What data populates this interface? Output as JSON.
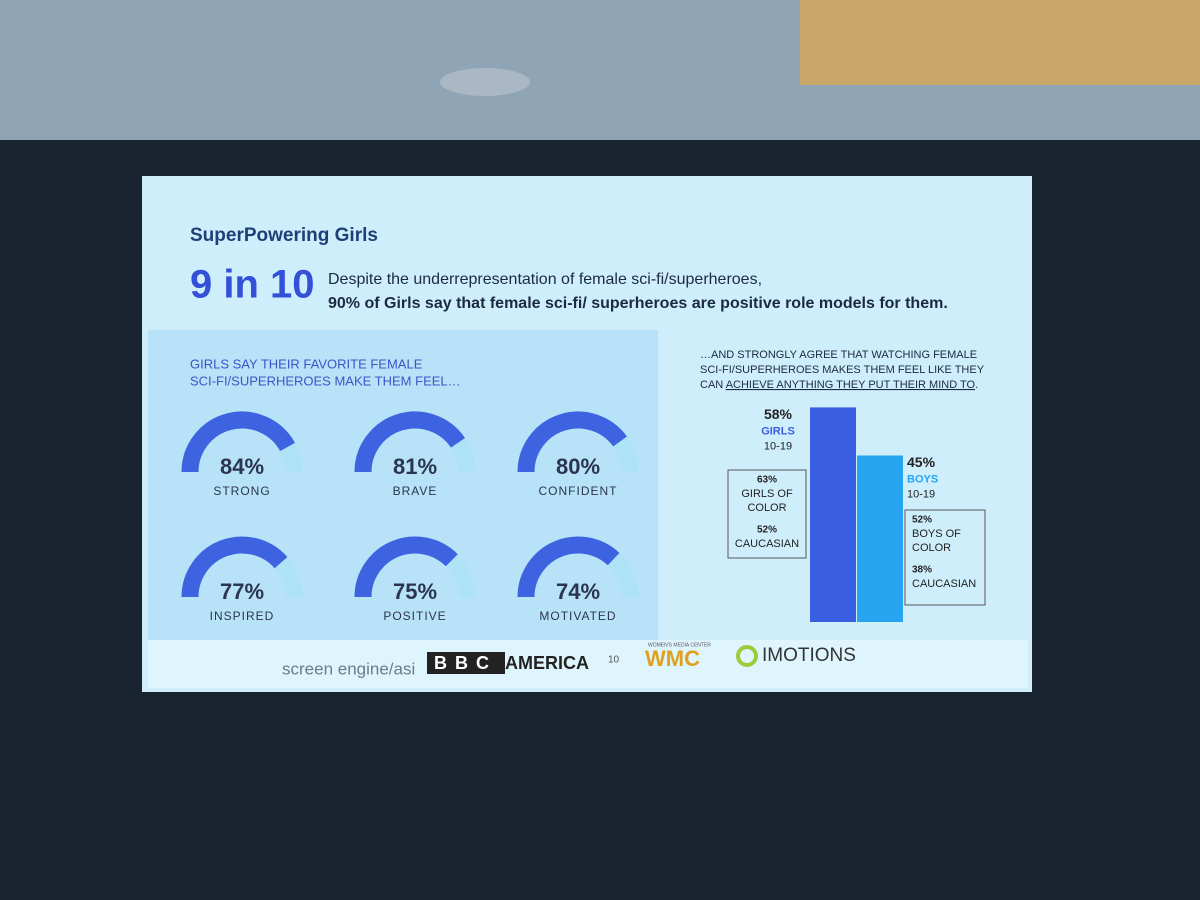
{
  "slide": {
    "title": "SuperPowering Girls",
    "headline": "9 in 10",
    "statement": "Despite the underrepresentation of female sci-fi/superheroes,",
    "statement_bold": "90% of Girls say that female sci-fi/ superheroes are positive role models for them.",
    "left_heading": [
      "GIRLS SAY THEIR FAVORITE FEMALE",
      "SCI-FI/SUPERHEROES MAKE THEM FEEL…"
    ],
    "right_heading": [
      "…AND STRONGLY AGREE THAT WATCHING FEMALE",
      "SCI-FI/SUPERHEROES MAKES THEM FEEL LIKE THEY",
      "CAN ",
      "ACHIEVE ANYTHING THEY PUT THEIR MIND TO",
      "."
    ],
    "footer": {
      "logo1": "screen engine/asi",
      "logo2a": "BBC",
      "logo2b": "AMERICA",
      "page": "10",
      "logo3_top": "WOMEN'S MEDIA CENTER",
      "logo3": "WMC",
      "logo4": "IMOTIONS"
    }
  },
  "chart_data": [
    {
      "type": "gauge",
      "categories": [
        "STRONG",
        "BRAVE",
        "CONFIDENT",
        "INSPIRED",
        "POSITIVE",
        "MOTIVATED"
      ],
      "values": [
        84,
        81,
        80,
        77,
        75,
        74
      ],
      "value_labels": [
        "84%",
        "81%",
        "80%",
        "77%",
        "75%",
        "74%"
      ],
      "ylim": [
        0,
        100
      ],
      "color": "#3d63e0",
      "track_color": "#aee3f7"
    },
    {
      "type": "bar",
      "categories": [
        "GIRLS",
        "BOYS"
      ],
      "sub_labels": [
        "10-19",
        "10-19"
      ],
      "values": [
        58,
        45
      ],
      "value_labels": [
        "58%",
        "45%"
      ],
      "colors": [
        "#3a5ee2",
        "#27a4f0"
      ],
      "breakdowns": [
        [
          {
            "label": "63%",
            "lines": [
              "GIRLS OF",
              "COLOR"
            ]
          },
          {
            "label": "52%",
            "lines": [
              "CAUCASIAN"
            ]
          }
        ],
        [
          {
            "label": "52%",
            "lines": [
              "BOYS OF",
              "COLOR"
            ]
          },
          {
            "label": "38%",
            "lines": [
              "CAUCASIAN"
            ]
          }
        ]
      ]
    }
  ]
}
